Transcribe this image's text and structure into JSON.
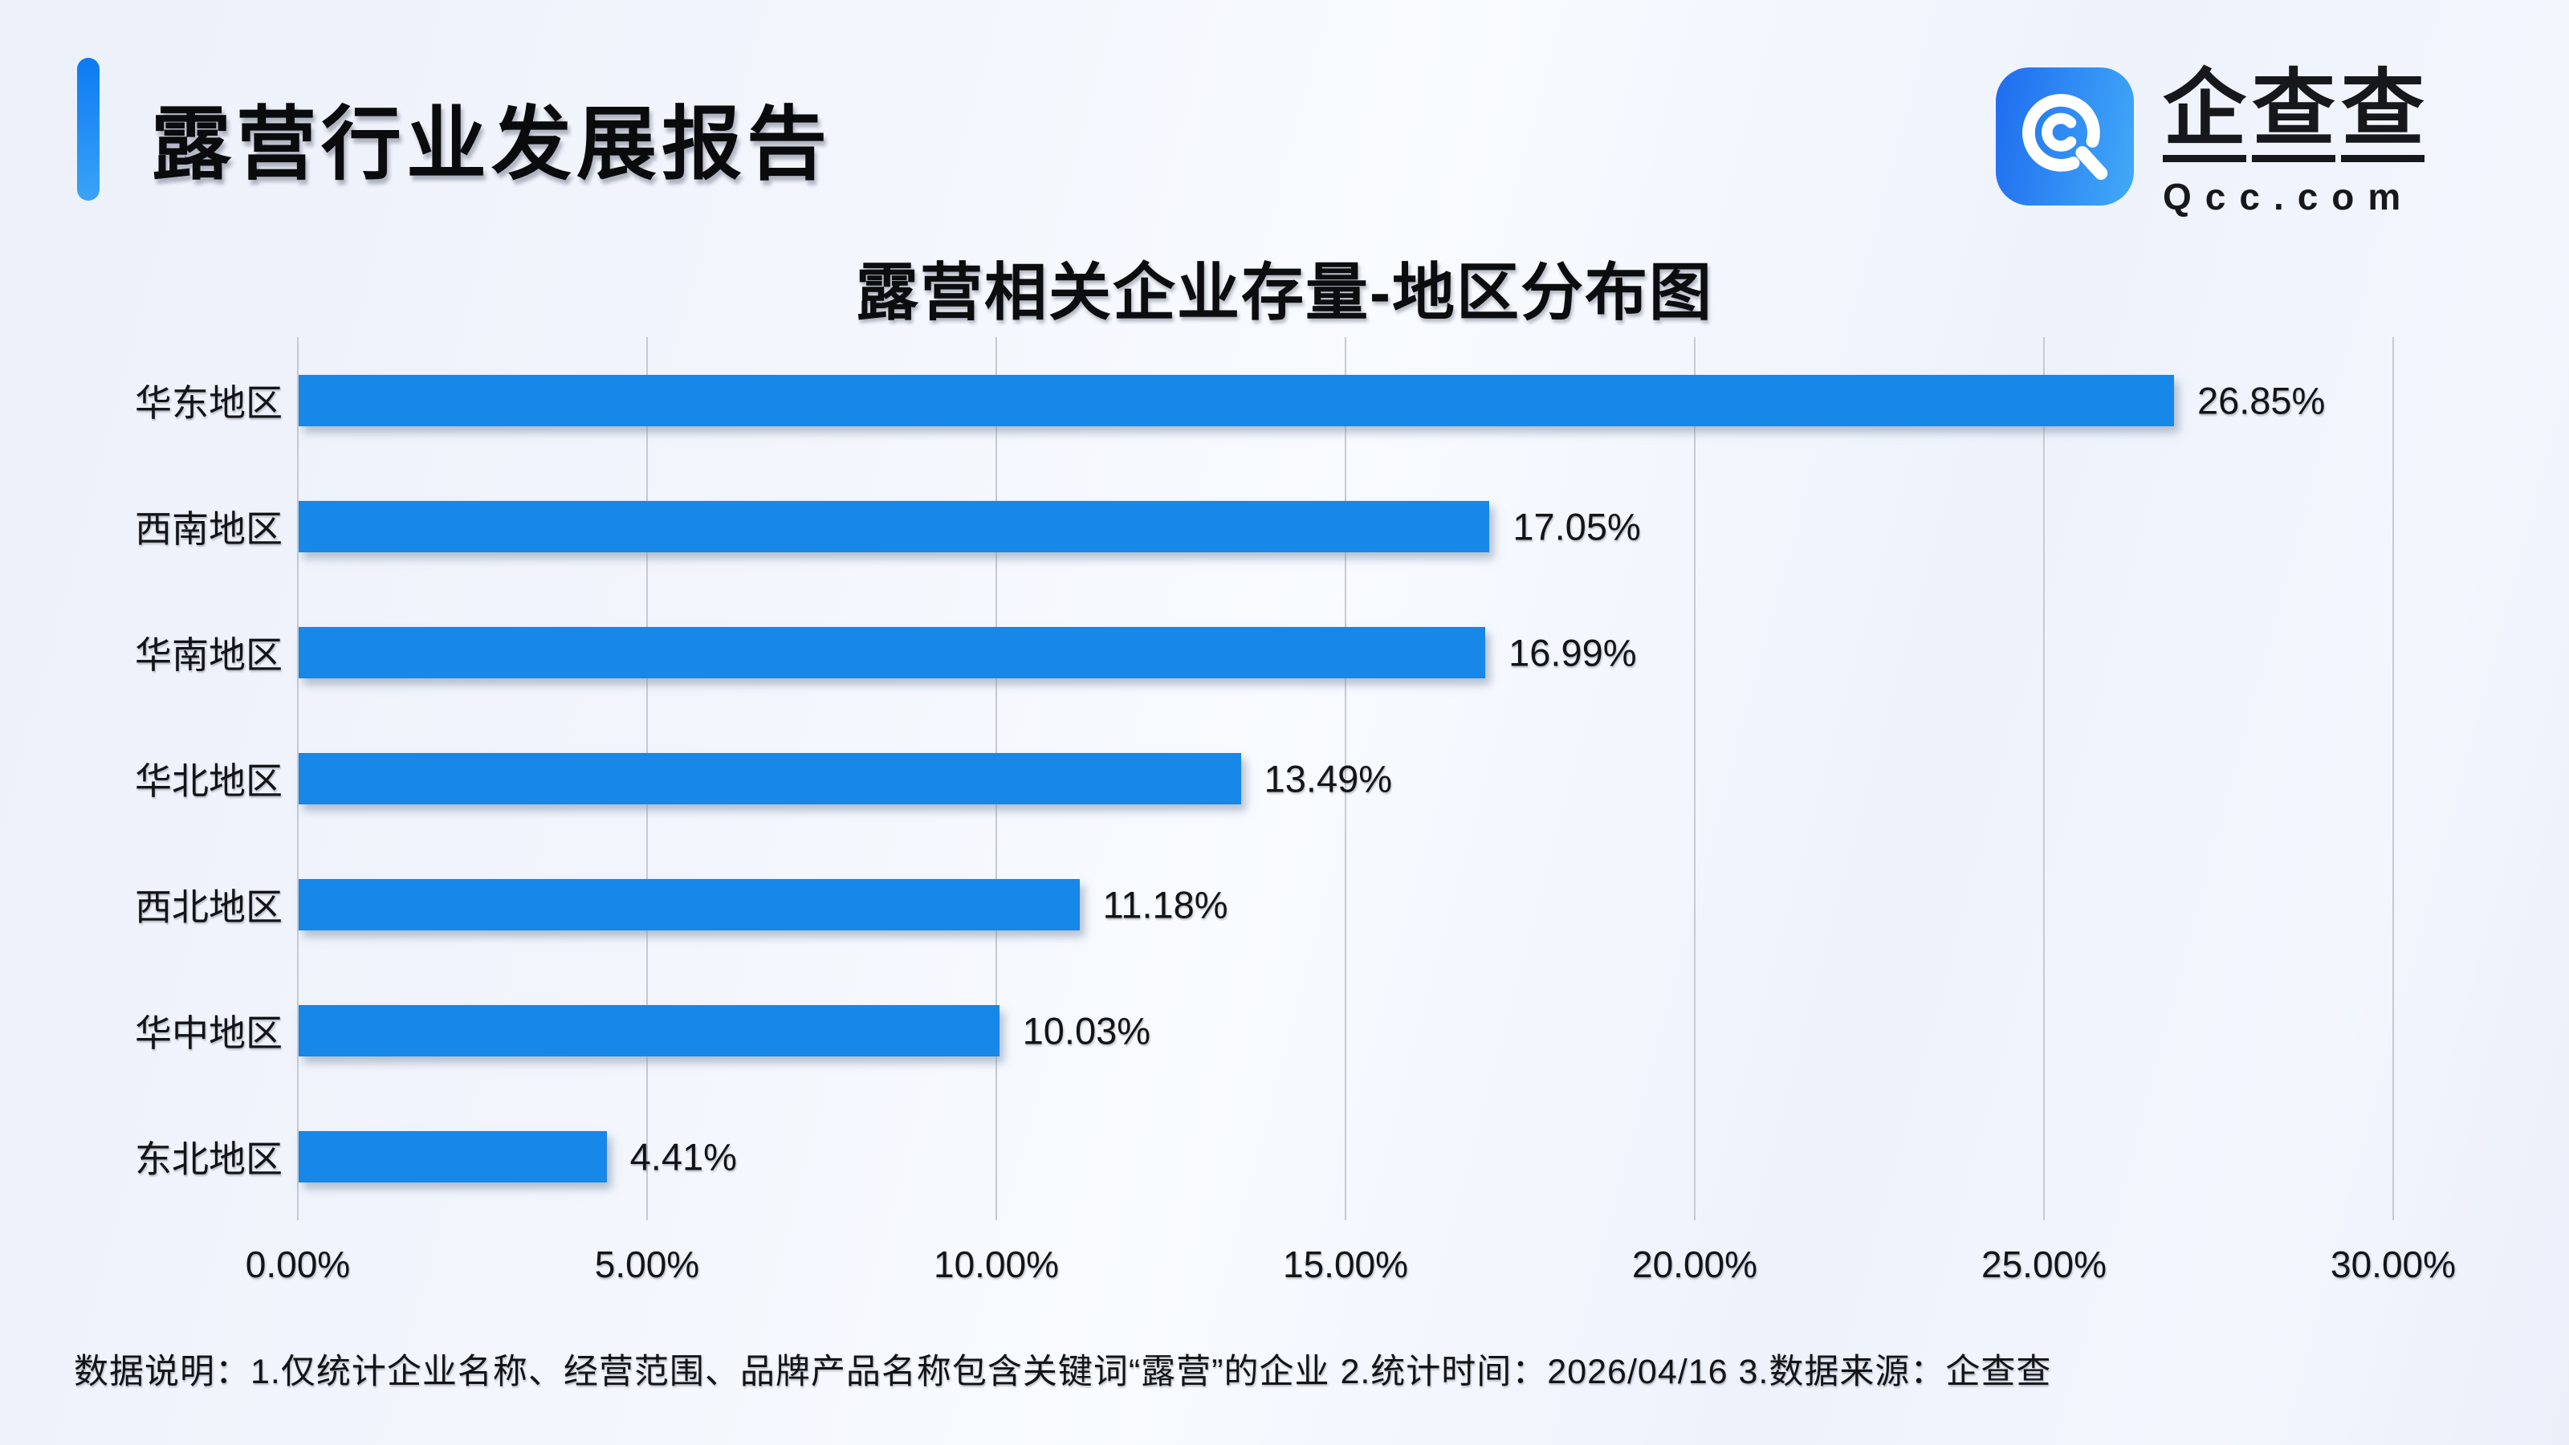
{
  "header": {
    "title": "露营行业发展报告"
  },
  "logo": {
    "name": "企查查",
    "domain": "Qcc.com",
    "icon": "qcc-magnifier-q-icon"
  },
  "colors": {
    "bar": "#1787e8",
    "accent_top": "#0c7bf2",
    "accent_bottom": "#3aa3f8",
    "grid": "#c6cad2",
    "text": "#131416",
    "logo_icon_left": "#1f6cef",
    "logo_icon_right": "#41aaf8",
    "background": "#f1f4fb"
  },
  "chart_data": {
    "type": "bar",
    "orientation": "horizontal",
    "title": "露营相关企业存量-地区分布图",
    "categories": [
      "华东地区",
      "西南地区",
      "华南地区",
      "华北地区",
      "西北地区",
      "华中地区",
      "东北地区"
    ],
    "values": [
      26.85,
      17.05,
      16.99,
      13.49,
      11.18,
      10.03,
      4.41
    ],
    "value_labels": [
      "26.85%",
      "17.05%",
      "16.99%",
      "13.49%",
      "11.18%",
      "10.03%",
      "4.41%"
    ],
    "x_ticks": [
      0,
      5,
      10,
      15,
      20,
      25,
      30
    ],
    "x_tick_labels": [
      "0.00%",
      "5.00%",
      "10.00%",
      "15.00%",
      "20.00%",
      "25.00%",
      "30.00%"
    ],
    "xlim": [
      0,
      30
    ],
    "grid": true,
    "legend_position": "none",
    "xlabel": "",
    "ylabel": ""
  },
  "footer": {
    "note": "数据说明：1.仅统计企业名称、经营范围、品牌产品名称包含关键词“露营”的企业  2.统计时间：2026/04/16   3.数据来源：企查查"
  }
}
